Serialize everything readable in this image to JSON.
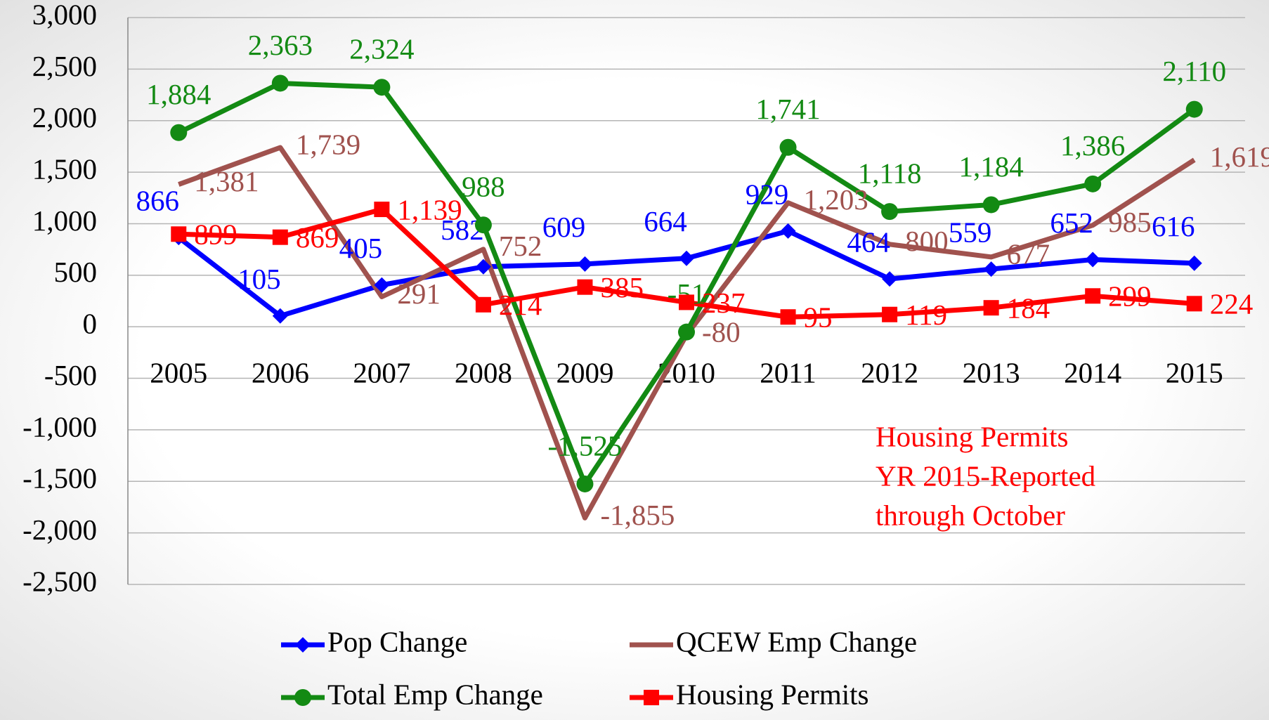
{
  "chart_data": {
    "type": "line",
    "categories": [
      "2005",
      "2006",
      "2007",
      "2008",
      "2009",
      "2010",
      "2011",
      "2012",
      "2013",
      "2014",
      "2015"
    ],
    "series": [
      {
        "name": "Pop Change",
        "color": "#0000ff",
        "marker": "diamond",
        "values": [
          866,
          105,
          405,
          582,
          609,
          664,
          929,
          464,
          559,
          652,
          616
        ],
        "value_labels": [
          "866",
          "105",
          "405",
          "582",
          "609",
          "664",
          "929",
          "464",
          "559",
          "652",
          "616"
        ]
      },
      {
        "name": "QCEW Emp Change",
        "color": "#a0524e",
        "marker": "none",
        "values": [
          1381,
          1739,
          291,
          752,
          -1855,
          -80,
          1203,
          800,
          677,
          985,
          1619
        ],
        "value_labels": [
          "1,381",
          "1,739",
          "291",
          "752",
          "-1,855",
          "-80",
          "1,203",
          "800",
          "677",
          "985",
          "1,619"
        ]
      },
      {
        "name": "Total Emp Change",
        "color": "#138a13",
        "marker": "circle",
        "values": [
          1884,
          2363,
          2324,
          988,
          -1525,
          -51,
          1741,
          1118,
          1184,
          1386,
          2110
        ],
        "value_labels": [
          "1,884",
          "2,363",
          "2,324",
          "988",
          "-1,525",
          "-51",
          "1,741",
          "1,118",
          "1,184",
          "1,386",
          "2,110"
        ]
      },
      {
        "name": "Housing Permits",
        "color": "#ff0000",
        "marker": "square",
        "values": [
          899,
          869,
          1139,
          214,
          385,
          237,
          95,
          119,
          184,
          299,
          224
        ],
        "value_labels": [
          "899",
          "869",
          "1,139",
          "214",
          "385",
          "237",
          "95",
          "119",
          "184",
          "299",
          "224"
        ]
      }
    ],
    "ylim": [
      -2500,
      3000
    ],
    "yticks": [
      {
        "value": -2500,
        "label": "-2,500"
      },
      {
        "value": -2000,
        "label": "-2,000"
      },
      {
        "value": -1500,
        "label": "-1,500"
      },
      {
        "value": -1000,
        "label": "-1,000"
      },
      -500,
      0,
      500,
      {
        "value": 1000,
        "label": "1,000"
      },
      {
        "value": 1500,
        "label": "1,500"
      },
      {
        "value": 2000,
        "label": "2,000"
      },
      {
        "value": 2500,
        "label": "2,500"
      },
      {
        "value": 3000,
        "label": "3,000"
      }
    ],
    "grid": true,
    "annotation": [
      "Housing Permits",
      "YR 2015-Reported",
      "through October"
    ],
    "annotation_color": "#ff0000"
  }
}
